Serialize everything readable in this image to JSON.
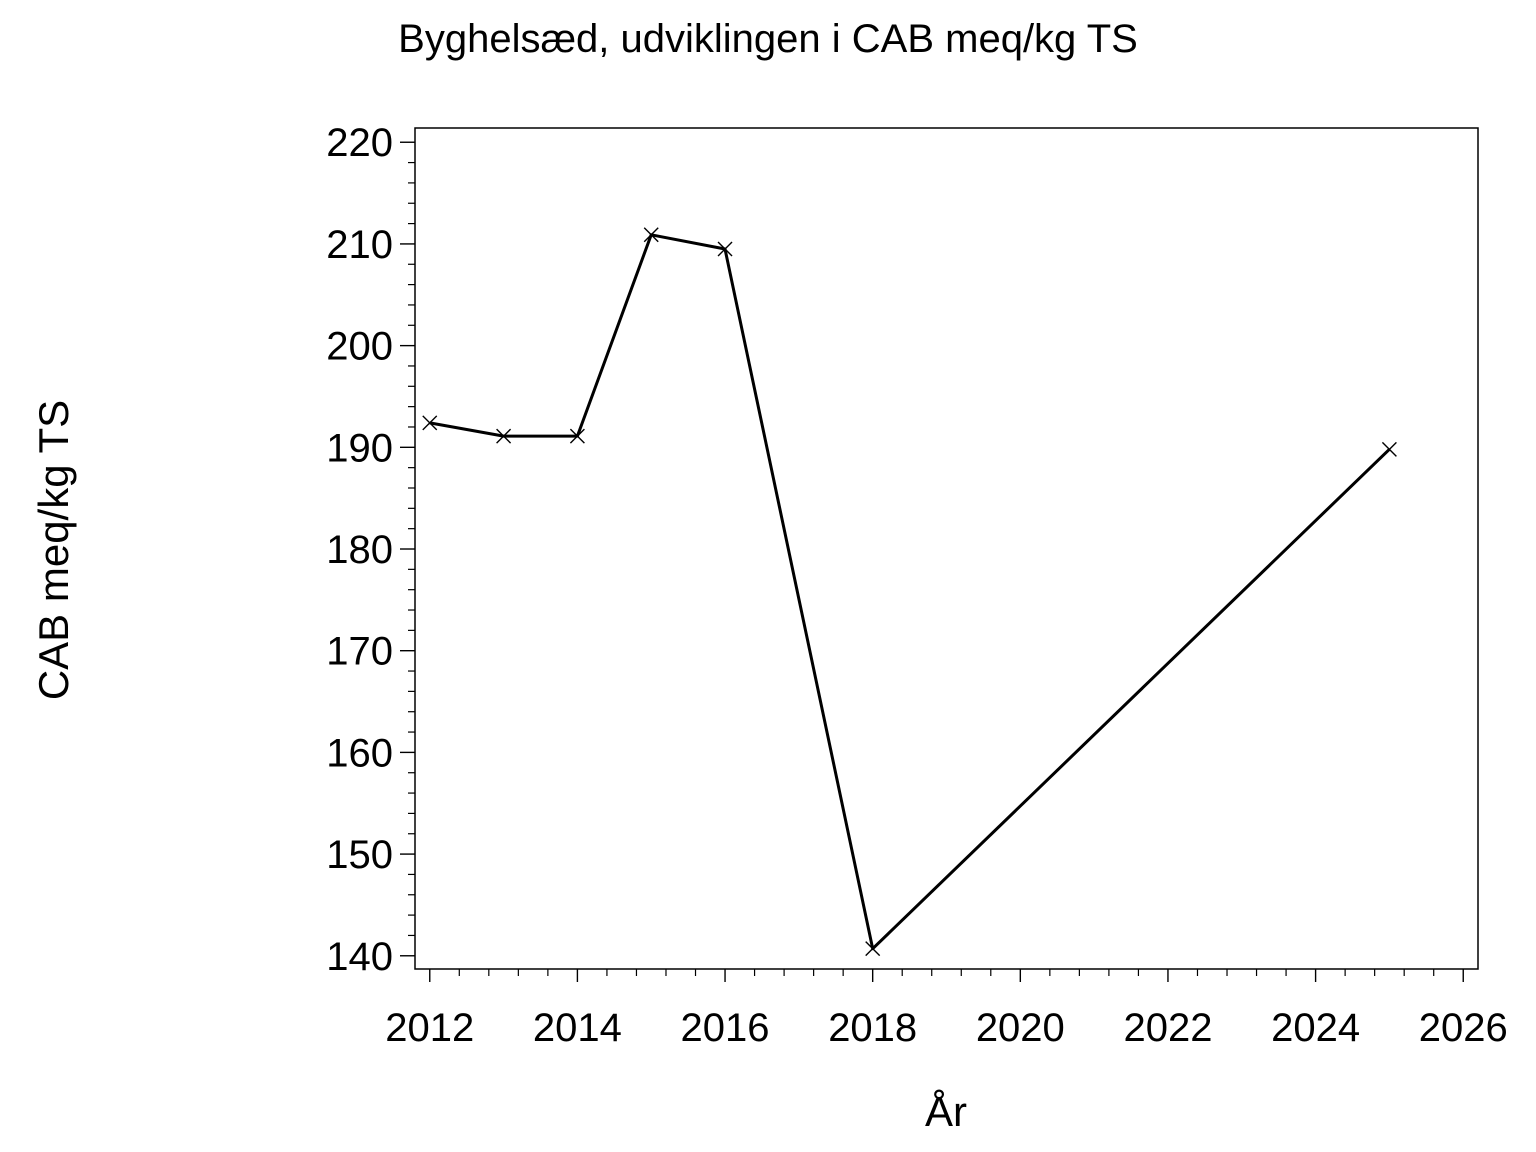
{
  "chart_data": {
    "type": "line",
    "title": "Byghelsæd, udviklingen i CAB meq/kg TS",
    "xlabel": "År",
    "ylabel": "CAB meq/kg TS",
    "xlim": [
      2011.8,
      2026.2
    ],
    "ylim": [
      138.7,
      221.4
    ],
    "x_ticks": [
      2012,
      2014,
      2016,
      2018,
      2020,
      2022,
      2024,
      2026
    ],
    "y_ticks": [
      140,
      150,
      160,
      170,
      180,
      190,
      200,
      210,
      220
    ],
    "x_minor_step": 0.4,
    "y_minor_step": 2,
    "grid": false,
    "legend": "none",
    "line_color": "#000000",
    "marker": "x",
    "series": [
      {
        "x": [
          2012,
          2013,
          2014,
          2015,
          2016,
          2018,
          2025
        ],
        "values": [
          192.4,
          191.1,
          191.1,
          210.9,
          209.5,
          140.7,
          189.8
        ]
      }
    ]
  }
}
